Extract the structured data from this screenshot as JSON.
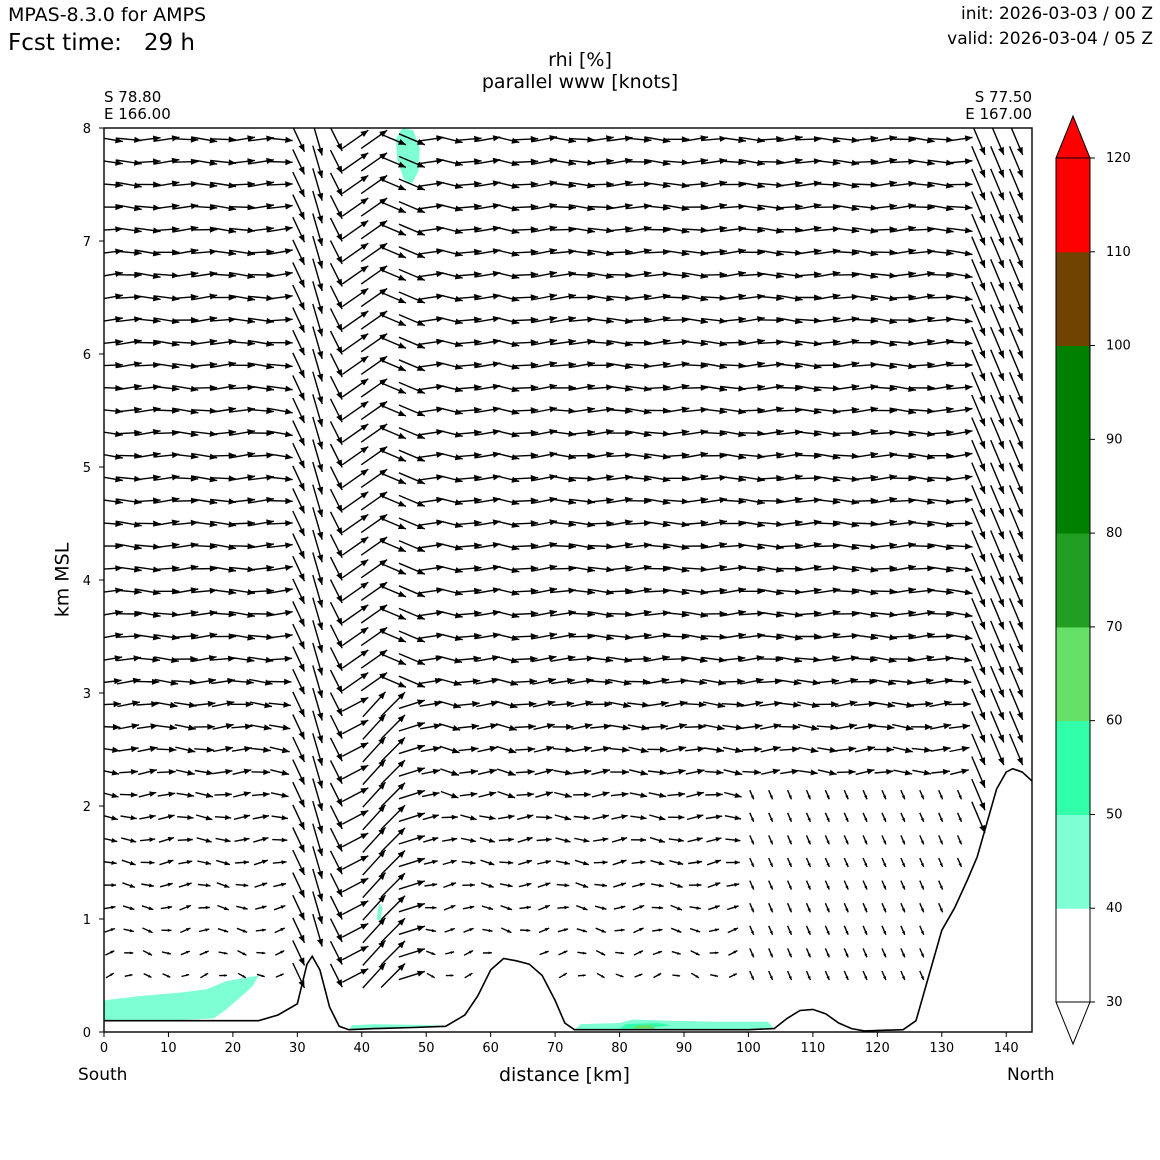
{
  "header": {
    "model": "MPAS-8.3.0 for AMPS",
    "fcst_label": "Fcst time:",
    "fcst_value": "29 h",
    "init": "init: 2026-03-03 / 00 Z",
    "valid": "valid: 2026-03-04 / 05 Z"
  },
  "chart_data": {
    "type": "heatmap",
    "title": "rhi [%]",
    "subtitle": "parallel www [knots]",
    "xlabel": "distance [km]",
    "ylabel": "km MSL",
    "xlim": [
      0,
      144
    ],
    "ylim": [
      0,
      8
    ],
    "xticks": [
      0,
      10,
      20,
      30,
      40,
      50,
      60,
      70,
      80,
      90,
      100,
      110,
      120,
      130,
      140
    ],
    "yticks": [
      0,
      1,
      2,
      3,
      4,
      5,
      6,
      7,
      8
    ],
    "left_point": {
      "lat": "S 78.80",
      "lon": "E 166.00",
      "dir": "South"
    },
    "right_point": {
      "lat": "S 77.50",
      "lon": "E 167.00",
      "dir": "North"
    },
    "terrain": [
      [
        0,
        0.1
      ],
      [
        10,
        0.1
      ],
      [
        20,
        0.1
      ],
      [
        24,
        0.1
      ],
      [
        27,
        0.15
      ],
      [
        30,
        0.25
      ],
      [
        31.5,
        0.6
      ],
      [
        32.3,
        0.67
      ],
      [
        33.5,
        0.55
      ],
      [
        35,
        0.22
      ],
      [
        36.5,
        0.05
      ],
      [
        38,
        0.02
      ],
      [
        42,
        0.03
      ],
      [
        48,
        0.04
      ],
      [
        53,
        0.05
      ],
      [
        56,
        0.15
      ],
      [
        58,
        0.32
      ],
      [
        60,
        0.55
      ],
      [
        62,
        0.65
      ],
      [
        64,
        0.63
      ],
      [
        66,
        0.6
      ],
      [
        68,
        0.5
      ],
      [
        70,
        0.28
      ],
      [
        71.5,
        0.08
      ],
      [
        73,
        0.02
      ],
      [
        80,
        0.02
      ],
      [
        90,
        0.02
      ],
      [
        100,
        0.02
      ],
      [
        104,
        0.03
      ],
      [
        106,
        0.12
      ],
      [
        108,
        0.19
      ],
      [
        110,
        0.2
      ],
      [
        112,
        0.16
      ],
      [
        114,
        0.08
      ],
      [
        116,
        0.03
      ],
      [
        118,
        0.01
      ],
      [
        124,
        0.02
      ],
      [
        126,
        0.1
      ],
      [
        128,
        0.5
      ],
      [
        130,
        0.9
      ],
      [
        132,
        1.1
      ],
      [
        134,
        1.35
      ],
      [
        135.5,
        1.55
      ],
      [
        137,
        1.85
      ],
      [
        138.5,
        2.15
      ],
      [
        140,
        2.3
      ],
      [
        141,
        2.33
      ],
      [
        142.5,
        2.3
      ],
      [
        144,
        2.22
      ]
    ],
    "rhi_patches": [
      {
        "range": "40-50",
        "color": "#7fffd4",
        "poly": [
          [
            0,
            0.1
          ],
          [
            0,
            0.28
          ],
          [
            6,
            0.32
          ],
          [
            12,
            0.35
          ],
          [
            16,
            0.38
          ],
          [
            19,
            0.45
          ],
          [
            22,
            0.48
          ],
          [
            24,
            0.5
          ],
          [
            23,
            0.4
          ],
          [
            21,
            0.3
          ],
          [
            19,
            0.2
          ],
          [
            17,
            0.12
          ],
          [
            10,
            0.1
          ]
        ]
      },
      {
        "range": "40-50",
        "color": "#7fffd4",
        "poly": [
          [
            45.5,
            7.72
          ],
          [
            45.3,
            7.9
          ],
          [
            46.3,
            8.0
          ],
          [
            48.0,
            7.98
          ],
          [
            49.0,
            7.82
          ],
          [
            48.8,
            7.62
          ],
          [
            47.7,
            7.5
          ],
          [
            46.5,
            7.55
          ]
        ]
      },
      {
        "range": "40-50",
        "color": "#7fffd4",
        "poly": [
          [
            42.3,
            1.0
          ],
          [
            42.7,
            1.14
          ],
          [
            43.2,
            1.1
          ],
          [
            42.9,
            0.98
          ]
        ]
      },
      {
        "range": "40-50",
        "color": "#7fffd4",
        "poly": [
          [
            38,
            0.02
          ],
          [
            38.5,
            0.06
          ],
          [
            42,
            0.07
          ],
          [
            52,
            0.06
          ],
          [
            53,
            0.05
          ],
          [
            48,
            0.04
          ],
          [
            42,
            0.03
          ]
        ]
      },
      {
        "range": "40-50",
        "color": "#7fffd4",
        "poly": [
          [
            73,
            0.02
          ],
          [
            74,
            0.07
          ],
          [
            80,
            0.08
          ],
          [
            82,
            0.11
          ],
          [
            88,
            0.1
          ],
          [
            95,
            0.09
          ],
          [
            103,
            0.09
          ],
          [
            104,
            0.03
          ],
          [
            90,
            0.02
          ]
        ]
      },
      {
        "range": "50-60",
        "color": "#32ffaa",
        "poly": [
          [
            80,
            0.03
          ],
          [
            81,
            0.07
          ],
          [
            86,
            0.08
          ],
          [
            88,
            0.06
          ],
          [
            84,
            0.03
          ]
        ]
      },
      {
        "range": "60-70",
        "color": "#66e066",
        "poly": [
          [
            82,
            0.03
          ],
          [
            83,
            0.06
          ],
          [
            85,
            0.06
          ],
          [
            85.5,
            0.03
          ]
        ]
      }
    ],
    "wind_field_levels_km": [
      0.5,
      0.7,
      0.9,
      1.1,
      1.3,
      1.5,
      1.7,
      1.9,
      2.1,
      2.3,
      2.5,
      2.7,
      2.9,
      3.1,
      3.3,
      3.5,
      3.7,
      3.9,
      4.1,
      4.3,
      4.5,
      4.7,
      4.9,
      5.1,
      5.3,
      5.5,
      5.7,
      5.9,
      6.1,
      6.3,
      6.5,
      6.7,
      6.9,
      7.1,
      7.3,
      7.5,
      7.7,
      7.9
    ],
    "colorbar": {
      "levels": [
        30,
        40,
        50,
        60,
        70,
        80,
        90,
        100,
        110,
        120
      ],
      "colors": [
        "#ffffff",
        "#7fffd4",
        "#32ffaa",
        "#66e066",
        "#229f22",
        "#008000",
        "#008000",
        "#704400",
        "#ff0000"
      ],
      "extend_low_color": "#ffffff",
      "extend_high_color": "#ff0000"
    }
  }
}
